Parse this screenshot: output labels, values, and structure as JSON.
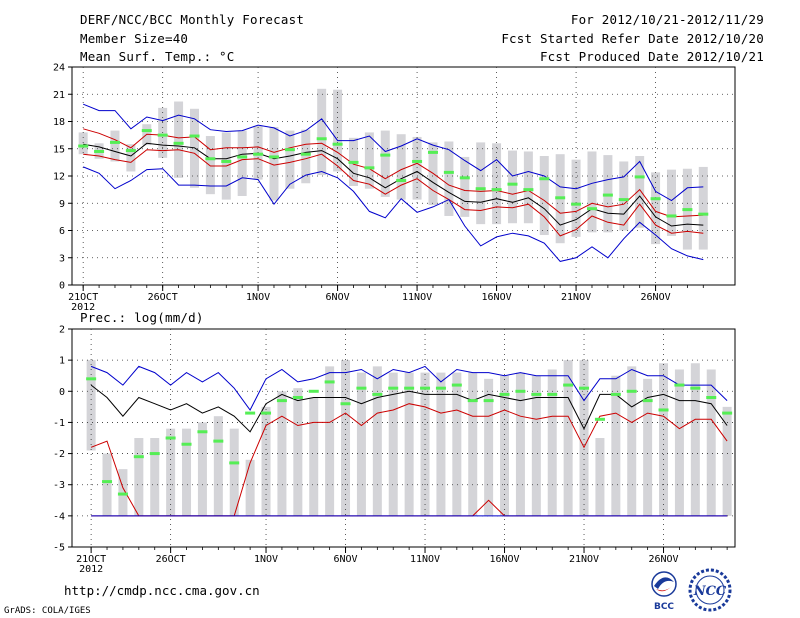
{
  "header": {
    "title": "DERF/NCC/BCC Monthly Forecast",
    "member_size": "Member Size=40",
    "variable": "Mean Surf. Temp.: °C",
    "period": "For 2012/10/21-2012/11/29",
    "start_date": "Fcst Started Refer Date 2012/10/20",
    "produced_date": "Fcst Produced Date 2012/10/21"
  },
  "footer": {
    "url": "http://cmdp.ncc.cma.gov.cn",
    "credit": "GrADS: COLA/IGES",
    "logo_left": "BCC",
    "logo_right": "NCC"
  },
  "colors": {
    "box": "#d4d4d8",
    "mean": "#000000",
    "lower": "#cc0000",
    "upper": "#0000cc",
    "marker": "#55ee55"
  },
  "chart_data": [
    {
      "type": "line",
      "title": "Mean Surf. Temp.: °C",
      "x_tick_labels": [
        "21OCT",
        "26OCT",
        "1NOV",
        "6NOV",
        "11NOV",
        "16NOV",
        "21NOV",
        "26NOV"
      ],
      "x_tick_days": [
        1,
        6,
        12,
        17,
        22,
        27,
        32,
        37
      ],
      "x_sub_label": "2012",
      "ylim": [
        0,
        24
      ],
      "yticks": [
        0,
        3,
        6,
        9,
        12,
        15,
        18,
        21,
        24
      ],
      "series": [
        {
          "name": "upper",
          "color": "#0000cc",
          "values": [
            19.9,
            19.2,
            19.2,
            17.2,
            18.5,
            18.1,
            18.7,
            18.3,
            17.1,
            16.9,
            17.0,
            17.6,
            17.3,
            16.4,
            17.0,
            18.3,
            15.9,
            15.9,
            16.4,
            14.7,
            15.3,
            16.1,
            15.4,
            14.9,
            13.7,
            12.6,
            13.8,
            12.0,
            12.5,
            12.0,
            10.8,
            10.6,
            11.2,
            11.6,
            11.9,
            13.6,
            10.3,
            9.3,
            10.7,
            10.8
          ]
        },
        {
          "name": "upper_mid",
          "color": "#cc0000",
          "values": [
            17.2,
            16.7,
            16.0,
            15.1,
            16.6,
            16.5,
            16.2,
            16.3,
            14.9,
            15.1,
            15.1,
            15.2,
            14.6,
            15.1,
            15.5,
            15.6,
            14.6,
            13.3,
            12.8,
            11.7,
            12.7,
            13.4,
            12.3,
            11.0,
            10.4,
            10.3,
            10.4,
            10.0,
            10.4,
            9.3,
            7.9,
            8.1,
            9.0,
            8.6,
            8.9,
            10.5,
            8.1,
            7.5,
            7.6,
            7.7
          ]
        },
        {
          "name": "mean",
          "color": "#000000",
          "values": [
            15.5,
            15.2,
            14.7,
            14.2,
            15.6,
            15.4,
            15.3,
            15.1,
            13.9,
            13.9,
            14.4,
            14.5,
            13.9,
            14.2,
            14.6,
            14.8,
            13.9,
            12.3,
            11.8,
            10.7,
            11.7,
            12.5,
            11.3,
            10.2,
            9.2,
            9.1,
            9.5,
            9.1,
            9.6,
            8.4,
            6.6,
            7.2,
            8.4,
            7.9,
            7.8,
            9.8,
            7.5,
            6.5,
            6.7,
            6.6
          ]
        },
        {
          "name": "lower_mid",
          "color": "#cc0000",
          "values": [
            14.4,
            14.2,
            13.8,
            13.5,
            14.9,
            14.8,
            14.9,
            14.5,
            13.1,
            13.1,
            13.8,
            13.9,
            13.2,
            13.5,
            13.9,
            14.4,
            13.1,
            11.5,
            11.1,
            10.0,
            11.0,
            11.7,
            10.4,
            9.4,
            8.3,
            8.2,
            8.6,
            8.5,
            8.9,
            7.5,
            5.4,
            6.1,
            7.6,
            6.9,
            6.6,
            8.9,
            6.6,
            5.7,
            5.9,
            5.7
          ]
        },
        {
          "name": "lower",
          "color": "#0000cc",
          "values": [
            13.0,
            12.3,
            10.6,
            11.5,
            12.7,
            12.8,
            11.0,
            11.0,
            10.9,
            10.9,
            11.8,
            11.6,
            8.9,
            11.1,
            12.1,
            12.5,
            11.8,
            10.3,
            8.1,
            7.4,
            9.5,
            8.0,
            8.6,
            9.4,
            6.5,
            4.3,
            5.3,
            5.7,
            5.4,
            4.6,
            2.6,
            3.0,
            4.2,
            3.0,
            5.1,
            6.9,
            5.5,
            4.0,
            3.2,
            2.8
          ]
        }
      ],
      "box_ranges": [
        [
          14.4,
          16.8
        ],
        [
          13.9,
          15.6
        ],
        [
          13.6,
          17.0
        ],
        [
          12.5,
          15.5
        ],
        [
          15.4,
          17.7
        ],
        [
          14.0,
          19.5
        ],
        [
          11.8,
          20.2
        ],
        [
          10.7,
          19.4
        ],
        [
          10.0,
          16.4
        ],
        [
          9.4,
          16.8
        ],
        [
          9.8,
          17.0
        ],
        [
          11.6,
          17.5
        ],
        [
          9.3,
          17.4
        ],
        [
          10.6,
          17.0
        ],
        [
          11.2,
          17.1
        ],
        [
          12.1,
          21.6
        ],
        [
          12.5,
          21.5
        ],
        [
          10.9,
          16.2
        ],
        [
          10.6,
          16.8
        ],
        [
          9.7,
          17.0
        ],
        [
          9.4,
          16.6
        ],
        [
          9.4,
          16.3
        ],
        [
          8.8,
          15.7
        ],
        [
          7.6,
          15.8
        ],
        [
          7.5,
          14.1
        ],
        [
          6.7,
          15.7
        ],
        [
          6.7,
          15.6
        ],
        [
          6.8,
          14.8
        ],
        [
          6.8,
          14.7
        ],
        [
          5.5,
          14.2
        ],
        [
          4.6,
          14.4
        ],
        [
          5.3,
          13.8
        ],
        [
          5.8,
          14.7
        ],
        [
          5.8,
          14.3
        ],
        [
          6.0,
          13.6
        ],
        [
          6.3,
          14.2
        ],
        [
          4.5,
          12.4
        ],
        [
          5.4,
          12.7
        ],
        [
          3.9,
          12.8
        ],
        [
          3.9,
          13.0
        ]
      ],
      "markers": [
        15.3,
        14.7,
        15.7,
        14.8,
        17.0,
        16.5,
        15.6,
        16.4,
        13.9,
        13.6,
        14.1,
        14.4,
        14.1,
        14.9,
        14.4,
        16.1,
        15.5,
        13.5,
        12.9,
        14.3,
        11.5,
        13.6,
        14.6,
        12.4,
        11.8,
        10.6,
        10.5,
        11.1,
        10.5,
        11.7,
        9.6,
        8.9,
        8.4,
        9.9,
        9.4,
        11.9,
        9.5,
        7.6,
        8.3,
        7.8
      ]
    },
    {
      "type": "line",
      "title": "Prec.: log(mm/d)",
      "x_tick_labels": [
        "21OCT",
        "26OCT",
        "1NOV",
        "6NOV",
        "11NOV",
        "16NOV",
        "21NOV",
        "26NOV"
      ],
      "x_tick_days": [
        1,
        6,
        12,
        17,
        22,
        27,
        32,
        37
      ],
      "x_sub_label": "2012",
      "ylim": [
        -5,
        2
      ],
      "yticks": [
        -5,
        -4,
        -3,
        -2,
        -1,
        0,
        1,
        2
      ],
      "series": [
        {
          "name": "upper",
          "color": "#0000cc",
          "values": [
            0.8,
            0.6,
            0.2,
            0.8,
            0.6,
            0.2,
            0.6,
            0.3,
            0.6,
            0.1,
            -0.6,
            0.4,
            0.7,
            0.3,
            0.4,
            0.6,
            0.6,
            0.7,
            0.4,
            0.7,
            0.6,
            0.8,
            0.3,
            0.7,
            0.6,
            0.6,
            0.5,
            0.6,
            0.5,
            0.5,
            0.5,
            -0.3,
            0.4,
            0.4,
            0.7,
            0.5,
            0.5,
            0.2,
            0.2,
            0.2,
            -0.3
          ]
        },
        {
          "name": "mean",
          "color": "#000000",
          "values": [
            0.2,
            -0.2,
            -0.8,
            -0.2,
            -0.4,
            -0.6,
            -0.4,
            -0.7,
            -0.5,
            -0.8,
            -1.3,
            -0.4,
            -0.1,
            -0.3,
            -0.2,
            -0.2,
            -0.2,
            -0.4,
            -0.2,
            -0.1,
            0.0,
            -0.1,
            -0.1,
            -0.1,
            -0.3,
            -0.1,
            -0.2,
            -0.3,
            -0.2,
            -0.2,
            -0.2,
            -1.2,
            -0.1,
            -0.1,
            -0.5,
            -0.2,
            -0.1,
            -0.3,
            -0.3,
            -0.4,
            -1.1
          ]
        },
        {
          "name": "lower",
          "color": "#cc0000",
          "values": [
            -1.8,
            -1.6,
            -3.1,
            -4.0,
            -4.0,
            -4.0,
            -4.0,
            -4.0,
            -4.0,
            -4.0,
            -2.3,
            -1.1,
            -0.8,
            -1.1,
            -1.0,
            -1.0,
            -0.7,
            -1.1,
            -0.7,
            -0.6,
            -0.4,
            -0.5,
            -0.7,
            -0.6,
            -0.8,
            -0.8,
            -0.6,
            -0.8,
            -0.9,
            -0.8,
            -0.8,
            -1.8,
            -0.8,
            -0.7,
            -1.0,
            -0.7,
            -0.8,
            -1.2,
            -0.9,
            -0.9,
            -1.6
          ]
        },
        {
          "name": "lower_floor",
          "color": "#cc0000",
          "values": [
            -4.0,
            -4.0,
            -4.0,
            -4.0,
            -4.0,
            -4.0,
            -4.0,
            -4.0,
            -4.0,
            -4.0,
            -4.0,
            -4.0,
            -4.0,
            -4.0,
            -4.0,
            -4.0,
            -4.0,
            -4.0,
            -4.0,
            -4.0,
            -4.0,
            -4.0,
            -4.0,
            -4.0,
            -4.0,
            -3.5,
            -4.0,
            -4.0,
            -4.0,
            -4.0,
            -4.0,
            -4.0,
            -4.0,
            -4.0,
            -4.0,
            -4.0,
            -4.0,
            -4.0,
            -4.0,
            -4.0,
            -4.0
          ]
        },
        {
          "name": "floor",
          "color": "#0000cc",
          "values": [
            -4.0,
            -4.0,
            -4.0,
            -4.0,
            -4.0,
            -4.0,
            -4.0,
            -4.0,
            -4.0,
            -4.0,
            -4.0,
            -4.0,
            -4.0,
            -4.0,
            -4.0,
            -4.0,
            -4.0,
            -4.0,
            -4.0,
            -4.0,
            -4.0,
            -4.0,
            -4.0,
            -4.0,
            -4.0,
            -4.0,
            -4.0,
            -4.0,
            -4.0,
            -4.0,
            -4.0,
            -4.0,
            -4.0,
            -4.0,
            -4.0,
            -4.0,
            -4.0,
            -4.0,
            -4.0,
            -4.0,
            -4.0
          ]
        }
      ],
      "box_ranges": [
        [
          -1.9,
          1.0
        ],
        [
          -4.0,
          -2.0
        ],
        [
          -4.0,
          -2.5
        ],
        [
          -4.0,
          -1.5
        ],
        [
          -4.0,
          -1.5
        ],
        [
          -4.0,
          -1.2
        ],
        [
          -4.0,
          -1.2
        ],
        [
          -4.0,
          -1.0
        ],
        [
          -4.0,
          -0.8
        ],
        [
          -4.0,
          -1.2
        ],
        [
          -4.0,
          -2.2
        ],
        [
          -4.0,
          -0.5
        ],
        [
          -4.0,
          0.0
        ],
        [
          -4.0,
          0.1
        ],
        [
          -4.0,
          -0.2
        ],
        [
          -4.0,
          0.8
        ],
        [
          -4.0,
          1.0
        ],
        [
          -4.0,
          0.6
        ],
        [
          -4.0,
          0.8
        ],
        [
          -4.0,
          0.6
        ],
        [
          -4.0,
          0.6
        ],
        [
          -4.0,
          0.6
        ],
        [
          -4.0,
          0.6
        ],
        [
          -4.0,
          0.6
        ],
        [
          -4.0,
          0.6
        ],
        [
          -4.0,
          0.4
        ],
        [
          -4.0,
          0.5
        ],
        [
          -4.0,
          0.6
        ],
        [
          -4.0,
          0.5
        ],
        [
          -4.0,
          0.7
        ],
        [
          -4.0,
          1.0
        ],
        [
          -4.0,
          1.0
        ],
        [
          -4.0,
          -1.5
        ],
        [
          -4.0,
          0.5
        ],
        [
          -4.0,
          0.8
        ],
        [
          -4.0,
          0.4
        ],
        [
          -4.0,
          0.9
        ],
        [
          -4.0,
          0.7
        ],
        [
          -4.0,
          0.9
        ],
        [
          -4.0,
          0.7
        ],
        [
          -4.0,
          -0.5
        ]
      ],
      "markers": [
        0.4,
        -2.9,
        -3.3,
        -2.1,
        -2.0,
        -1.5,
        -1.7,
        -1.3,
        -1.6,
        -2.3,
        -0.7,
        -0.7,
        -0.3,
        -0.2,
        0.0,
        0.3,
        -0.4,
        0.1,
        -0.1,
        0.1,
        0.1,
        0.1,
        0.1,
        0.2,
        -0.3,
        -0.3,
        -0.1,
        0.0,
        -0.1,
        -0.1,
        0.2,
        0.1,
        -0.9,
        -0.1,
        0.0,
        -0.3,
        -0.6,
        0.2,
        0.1,
        -0.2,
        -0.7
      ]
    }
  ]
}
